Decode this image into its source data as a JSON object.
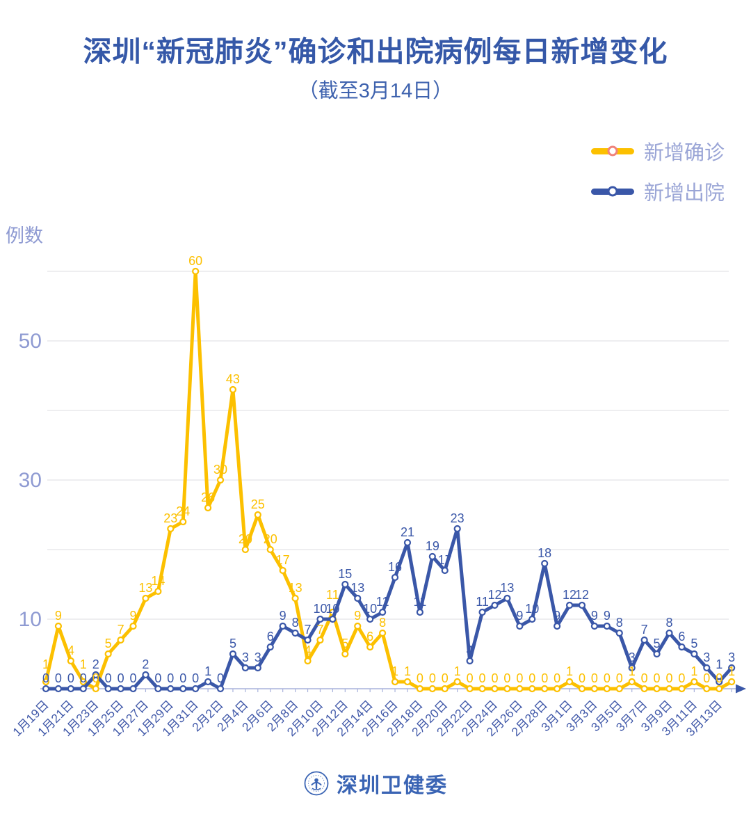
{
  "title": "深圳“新冠肺炎”确诊和出院病例每日新增变化",
  "subtitle": "（截至3月14日）",
  "y_axis": {
    "label": "例数",
    "tick_labels": [
      50,
      30,
      10
    ],
    "grid_max": 60,
    "grid_step": 10
  },
  "legend": [
    {
      "label": "新增确诊",
      "color": "#FCC000",
      "marker_ring": "#F0837B"
    },
    {
      "label": "新增出院",
      "color": "#3A57A8",
      "marker_ring": "#3A57A8"
    }
  ],
  "footer": {
    "logo_text": "深圳卫健委"
  },
  "colors": {
    "title": "#3558A8",
    "grid": "#E4E4E8",
    "axis_line": "#A8B2DC",
    "y_tick_label": "#8E9AD2",
    "date_label": "#4159A9",
    "background": "#FFFFFF"
  },
  "chart_data": {
    "type": "line",
    "title": "深圳“新冠肺炎”确诊和出院病例每日新增变化",
    "subtitle": "（截至3月14日）",
    "xlabel": "",
    "ylabel": "例数",
    "ylim": [
      0,
      62
    ],
    "grid": true,
    "legend_position": "top-right",
    "x_label_every": 2,
    "categories": [
      "1月19日",
      "1月20日",
      "1月21日",
      "1月22日",
      "1月23日",
      "1月24日",
      "1月25日",
      "1月26日",
      "1月27日",
      "1月28日",
      "1月29日",
      "1月30日",
      "1月31日",
      "2月1日",
      "2月2日",
      "2月3日",
      "2月4日",
      "2月5日",
      "2月6日",
      "2月7日",
      "2月8日",
      "2月9日",
      "2月10日",
      "2月11日",
      "2月12日",
      "2月13日",
      "2月14日",
      "2月15日",
      "2月16日",
      "2月17日",
      "2月18日",
      "2月19日",
      "2月20日",
      "2月21日",
      "2月22日",
      "2月23日",
      "2月24日",
      "2月25日",
      "2月26日",
      "2月27日",
      "2月28日",
      "2月29日",
      "3月1日",
      "3月2日",
      "3月3日",
      "3月4日",
      "3月5日",
      "3月6日",
      "3月7日",
      "3月8日",
      "3月9日",
      "3月10日",
      "3月11日",
      "3月12日",
      "3月13日",
      "3月14日"
    ],
    "series": [
      {
        "name": "新增确诊",
        "color": "#FCC000",
        "values": [
          1,
          9,
          4,
          1,
          0,
          5,
          7,
          9,
          13,
          14,
          23,
          24,
          60,
          26,
          30,
          43,
          20,
          25,
          20,
          17,
          13,
          4,
          7,
          11,
          5,
          9,
          6,
          8,
          1,
          1,
          0,
          0,
          0,
          1,
          0,
          0,
          0,
          0,
          0,
          0,
          0,
          0,
          1,
          0,
          0,
          0,
          0,
          1,
          0,
          0,
          0,
          0,
          1,
          0,
          0,
          1
        ]
      },
      {
        "name": "新增出院",
        "color": "#3A57A8",
        "values": [
          0,
          0,
          0,
          0,
          2,
          0,
          0,
          0,
          2,
          0,
          0,
          0,
          0,
          1,
          0,
          5,
          3,
          3,
          6,
          9,
          8,
          7,
          10,
          10,
          15,
          13,
          10,
          11,
          16,
          21,
          11,
          19,
          17,
          23,
          4,
          11,
          12,
          13,
          9,
          10,
          18,
          9,
          12,
          12,
          9,
          9,
          8,
          3,
          7,
          5,
          8,
          6,
          5,
          3,
          1,
          3
        ]
      }
    ]
  }
}
